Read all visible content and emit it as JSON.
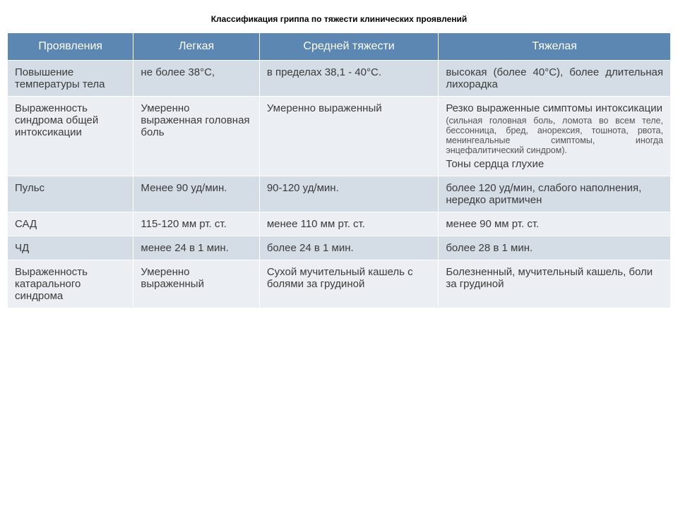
{
  "title": "Классификация гриппа по тяжести клинических проявлений",
  "table": {
    "header_bg": "#5b87b2",
    "header_color": "#ffffff",
    "row_odd_bg": "#d4dce6",
    "row_even_bg": "#ebeef3",
    "text_color": "#3b3b3b",
    "columns": [
      "Проявления",
      "Легкая",
      "Средней тяжести",
      "Тяжелая"
    ],
    "rows": [
      {
        "c0": "Повышение температуры тела",
        "c1": "не более 38°С,",
        "c2": "в пределах 38,1 - 40°С.",
        "c3": "высокая (более 40°С), более длительная лихорадка"
      },
      {
        "c0": "Выраженность синдрома общей интоксикации",
        "c1": "Умеренно выраженная головная боль",
        "c2": "Умеренно выраженный",
        "c3_main": "Резко выраженные симптомы интоксикации",
        "c3_sub": "(сильная головная боль, ломота во всем теле, бессонница, бред, анорексия, тошнота, рвота, менингеальные симптомы, иногда энцефалитический синдром).",
        "c3_bottom": "Тоны сердца глухие"
      },
      {
        "c0": "Пульс",
        "c1": "Менее 90 уд/мин.",
        "c2": "90-120 уд/мин.",
        "c3": "более 120 уд/мин, слабого наполнения, нередко аритмичен"
      },
      {
        "c0": "САД",
        "c1": "115-120 мм рт. ст.",
        "c2": "менее 110 мм рт. ст.",
        "c3": "менее 90 мм рт. ст."
      },
      {
        "c0": "ЧД",
        "c1": "менее 24 в 1 мин.",
        "c2": "более 24 в 1 мин.",
        "c3": "более 28 в 1 мин."
      },
      {
        "c0": "Выраженность катарального синдрома",
        "c1": "Умеренно выраженный",
        "c2": "Сухой мучительный кашель с болями за грудиной",
        "c3": "Болезненный, мучительный кашель, боли за грудиной"
      }
    ]
  }
}
